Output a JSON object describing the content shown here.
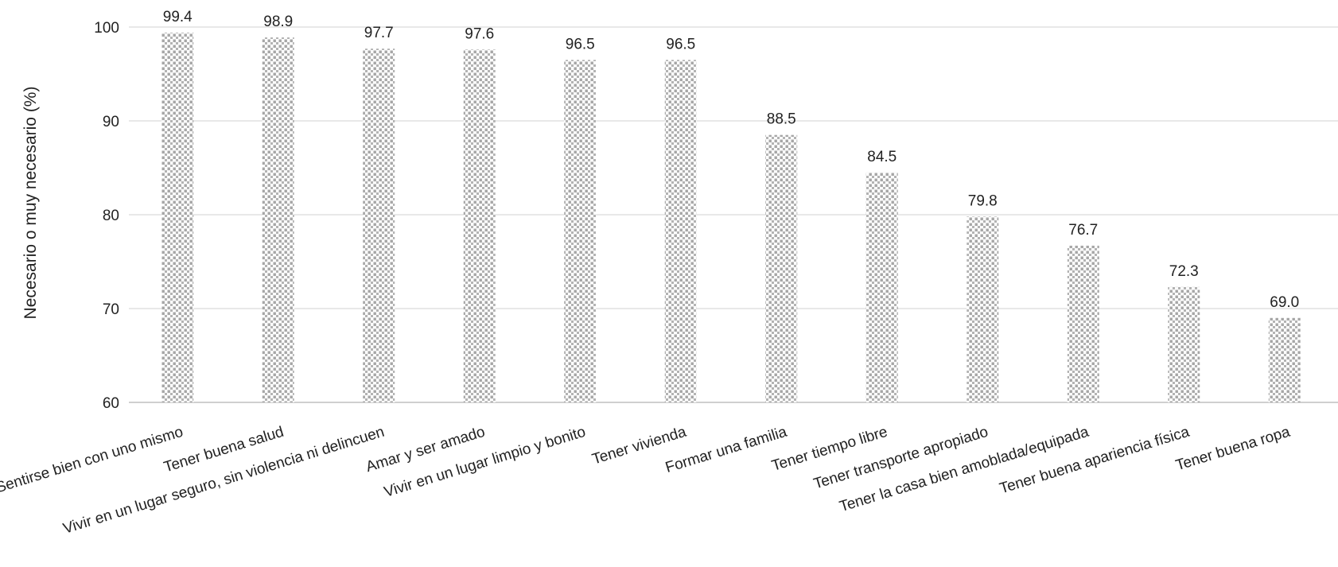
{
  "chart_data": {
    "type": "bar",
    "title": "",
    "xlabel": "",
    "ylabel": "Necesario o muy necesario (%)",
    "ylim": [
      60,
      100
    ],
    "yticks": [
      "60",
      "70",
      "80",
      "90",
      "100"
    ],
    "grid": true,
    "legend": "none",
    "categories": [
      "Sentirse bien con uno mismo",
      "Tener buena salud",
      "Vivir en un lugar seguro, sin violencia ni delincuen",
      "Amar y ser amado",
      "Vivir en un lugar limpio y bonito",
      "Tener vivienda",
      "Formar una familia",
      "Tener tiempo libre",
      "Tener transporte apropiado",
      "Tener la casa bien amoblada/equipada",
      "Tener buena apariencia física",
      "Tener buena ropa"
    ],
    "values": [
      99.4,
      98.9,
      97.7,
      97.6,
      96.5,
      96.5,
      88.5,
      84.5,
      79.8,
      76.7,
      72.3,
      69.0
    ],
    "value_labels": [
      "99.4",
      "98.9",
      "97.7",
      "97.6",
      "96.5",
      "96.5",
      "88.5",
      "84.5",
      "79.8",
      "76.7",
      "72.3",
      "69.0"
    ],
    "bar_fill_pattern": "dotted",
    "colors": {
      "bar_dot": "#a6a6a6",
      "grid": "#d9d9d9",
      "axis": "#bfbfbf",
      "text": "#222222"
    }
  }
}
